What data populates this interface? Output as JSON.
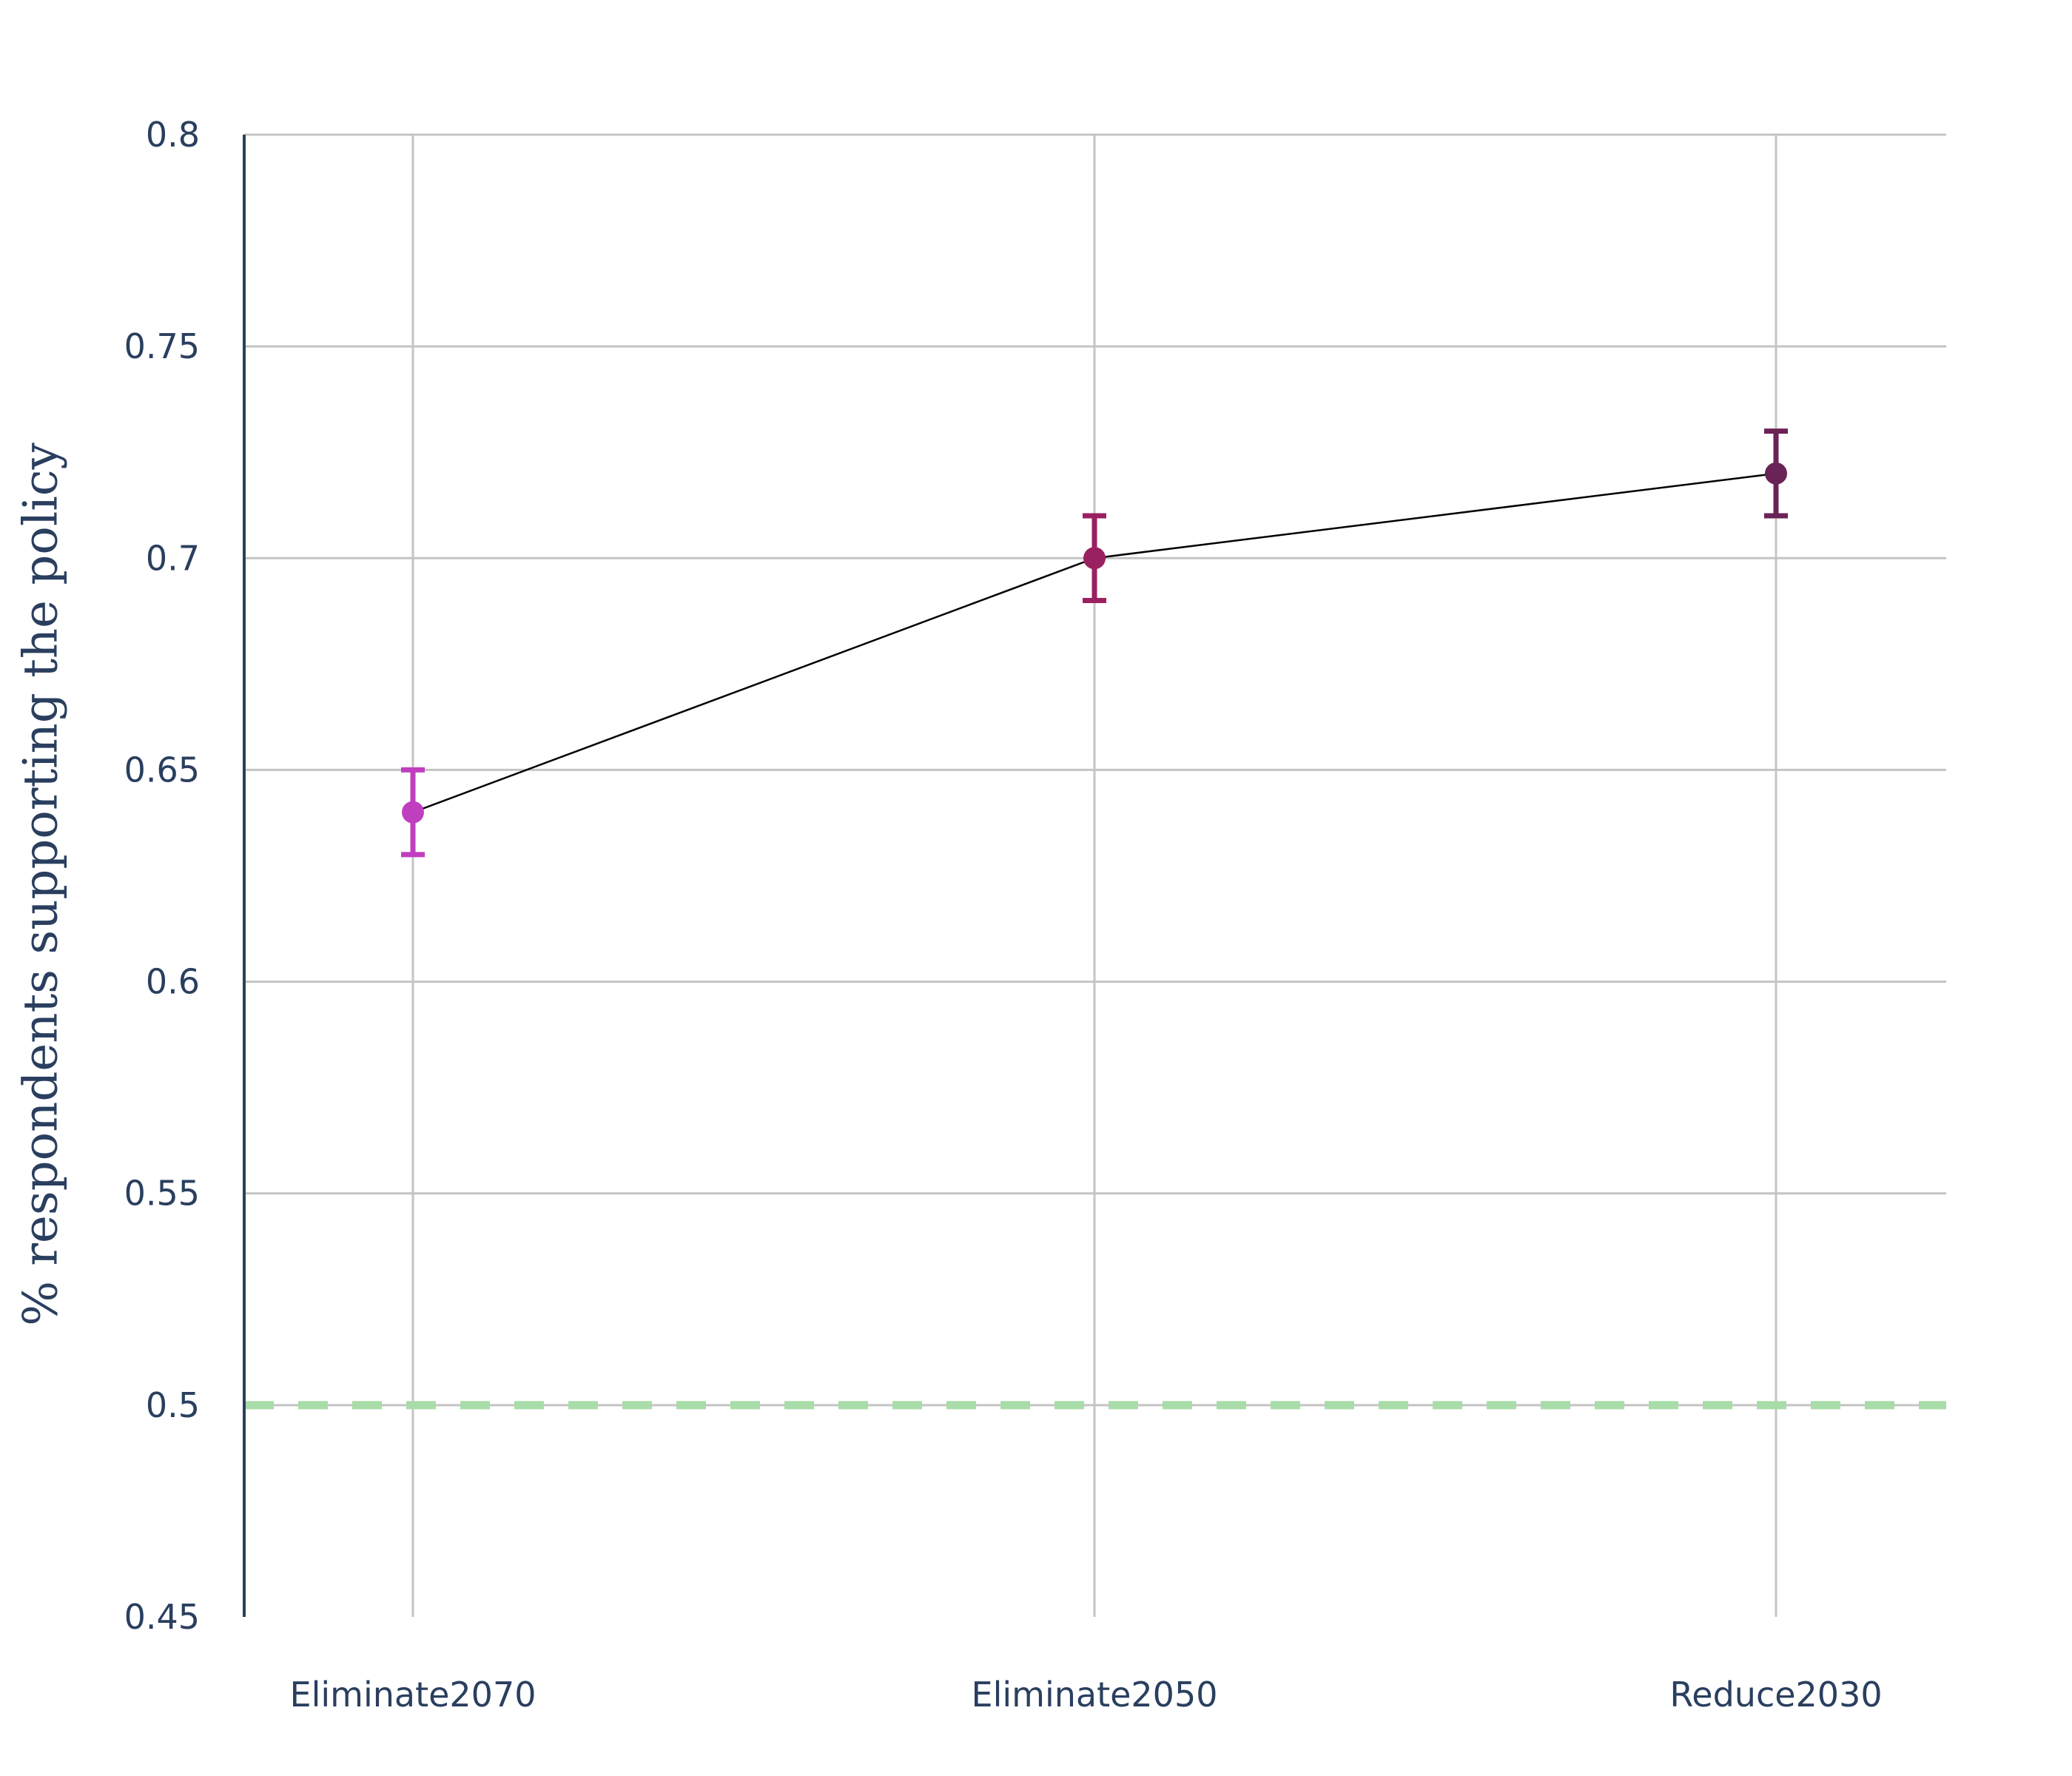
{
  "chart_data": {
    "type": "scatter",
    "title": "",
    "xlabel": "",
    "ylabel": "% respondents supporting the policy",
    "categories": [
      "Eliminate2070",
      "Eliminate2050",
      "Reduce2030"
    ],
    "series": [
      {
        "values": [
          0.64,
          0.7,
          0.72
        ],
        "error": [
          0.01,
          0.01,
          0.01
        ],
        "colors": [
          "#c03fbf",
          "#9a2161",
          "#6a2357"
        ],
        "line_color": "#000000"
      }
    ],
    "reference_line": {
      "y": 0.5,
      "color": "#a8dca8",
      "style": "dashed"
    },
    "ylim": [
      0.45,
      0.8
    ],
    "yticks": [
      0.45,
      0.5,
      0.55,
      0.6,
      0.65,
      0.7,
      0.75,
      0.8
    ],
    "ytick_labels": [
      "0.45",
      "0.5",
      "0.55",
      "0.6",
      "0.65",
      "0.7",
      "0.75",
      "0.8"
    ],
    "grid": true,
    "legend": "none"
  }
}
